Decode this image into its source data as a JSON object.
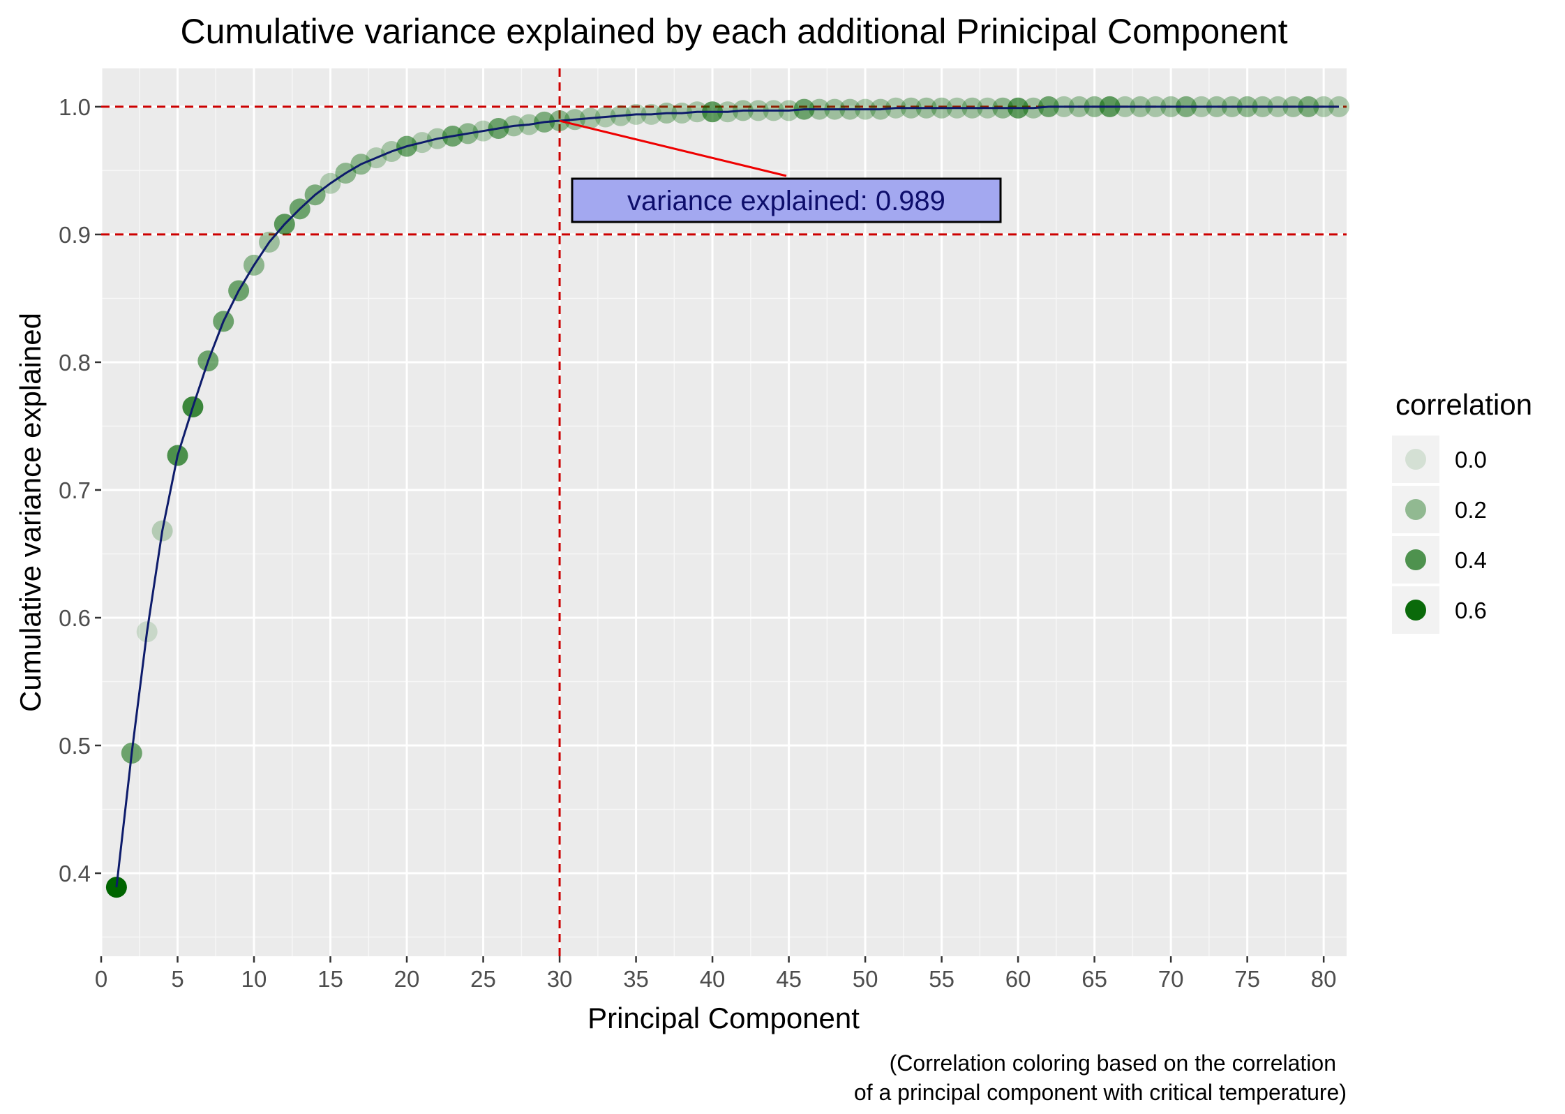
{
  "chart_data": {
    "type": "scatter",
    "title": "Cumulative variance explained by each additional Prinicipal Component",
    "xlabel": "Principal Component",
    "ylabel": "Cumulative variance explained",
    "caption_lines": [
      "(Correlation coloring based on the correlation",
      "of a principal component with critical temperature)"
    ],
    "xlim": [
      0,
      81.5
    ],
    "ylim": [
      0.335,
      1.03
    ],
    "x_ticks": [
      0,
      5,
      10,
      15,
      20,
      25,
      30,
      35,
      40,
      45,
      50,
      55,
      60,
      65,
      70,
      75,
      80
    ],
    "y_ticks": [
      0.4,
      0.5,
      0.6,
      0.7,
      0.8,
      0.9,
      1.0
    ],
    "y_tick_labels": [
      "0.4",
      "0.5",
      "0.6",
      "0.7",
      "0.8",
      "0.9",
      "1.0"
    ],
    "grid": true,
    "reference_lines": {
      "vertical_x": 30,
      "horizontal_y": [
        0.9,
        1.0
      ],
      "color": "#cc0000"
    },
    "annotation": {
      "text": "variance explained: 0.989",
      "x": 30,
      "y": 0.989,
      "box_color": "#a3a8f0"
    },
    "legend": {
      "title": "correlation",
      "placement": "right",
      "entries": [
        {
          "label": "0.0",
          "value": 0.0
        },
        {
          "label": "0.2",
          "value": 0.2
        },
        {
          "label": "0.4",
          "value": 0.4
        },
        {
          "label": "0.6",
          "value": 0.6
        }
      ]
    },
    "colors": {
      "point": "#006400",
      "line": "#0d1b6b",
      "panel": "#ebebeb",
      "grid": "#ffffff"
    },
    "x": [
      1,
      2,
      3,
      4,
      5,
      6,
      7,
      8,
      9,
      10,
      11,
      12,
      13,
      14,
      15,
      16,
      17,
      18,
      19,
      20,
      21,
      22,
      23,
      24,
      25,
      26,
      27,
      28,
      29,
      30,
      31,
      32,
      33,
      34,
      35,
      36,
      37,
      38,
      39,
      40,
      41,
      42,
      43,
      44,
      45,
      46,
      47,
      48,
      49,
      50,
      51,
      52,
      53,
      54,
      55,
      56,
      57,
      58,
      59,
      60,
      61,
      62,
      63,
      64,
      65,
      66,
      67,
      68,
      69,
      70,
      71,
      72,
      73,
      74,
      75,
      76,
      77,
      78,
      79,
      80,
      81
    ],
    "y": [
      0.389,
      0.494,
      0.589,
      0.668,
      0.727,
      0.765,
      0.801,
      0.832,
      0.856,
      0.876,
      0.894,
      0.908,
      0.92,
      0.931,
      0.94,
      0.948,
      0.955,
      0.96,
      0.965,
      0.969,
      0.972,
      0.975,
      0.977,
      0.979,
      0.981,
      0.983,
      0.985,
      0.986,
      0.988,
      0.989,
      0.99,
      0.991,
      0.992,
      0.993,
      0.994,
      0.994,
      0.995,
      0.995,
      0.996,
      0.996,
      0.996,
      0.997,
      0.997,
      0.997,
      0.997,
      0.998,
      0.998,
      0.998,
      0.998,
      0.998,
      0.998,
      0.999,
      0.999,
      0.999,
      0.999,
      0.999,
      0.999,
      0.999,
      0.999,
      0.999,
      0.999,
      1.0,
      1.0,
      1.0,
      1.0,
      1.0,
      1.0,
      1.0,
      1.0,
      1.0,
      1.0,
      1.0,
      1.0,
      1.0,
      1.0,
      1.0,
      1.0,
      1.0,
      1.0,
      1.0,
      1.0
    ],
    "correlation": [
      0.65,
      0.3,
      0.02,
      0.08,
      0.4,
      0.45,
      0.3,
      0.3,
      0.3,
      0.2,
      0.15,
      0.35,
      0.3,
      0.25,
      0.1,
      0.2,
      0.2,
      0.1,
      0.12,
      0.3,
      0.1,
      0.12,
      0.3,
      0.2,
      0.1,
      0.3,
      0.15,
      0.12,
      0.25,
      0.2,
      0.15,
      0.12,
      0.1,
      0.12,
      0.1,
      0.1,
      0.15,
      0.12,
      0.12,
      0.35,
      0.12,
      0.15,
      0.12,
      0.12,
      0.12,
      0.3,
      0.15,
      0.15,
      0.15,
      0.12,
      0.15,
      0.12,
      0.15,
      0.15,
      0.15,
      0.12,
      0.15,
      0.12,
      0.2,
      0.35,
      0.15,
      0.3,
      0.12,
      0.15,
      0.2,
      0.35,
      0.12,
      0.15,
      0.12,
      0.15,
      0.25,
      0.12,
      0.15,
      0.15,
      0.2,
      0.15,
      0.12,
      0.15,
      0.25,
      0.12,
      0.12
    ]
  }
}
